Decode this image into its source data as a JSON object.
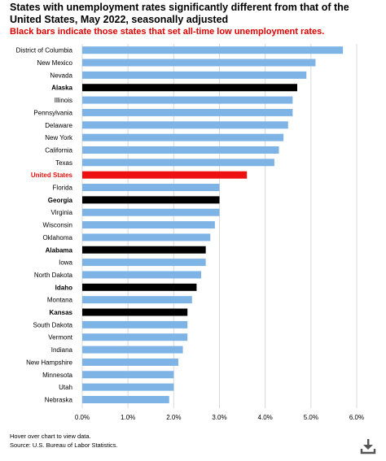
{
  "title": "States with unemployment rates significantly different from that of the United States, May 2022, seasonally adjusted",
  "subtitle": "Black bars indicate those states that set all-time low unemployment rates.",
  "footer": {
    "hover_note": "Hover over chart to view data.",
    "source": "Source: U.S. Bureau of Labor Statistics."
  },
  "download_icon": "download-icon",
  "colors": {
    "default_bar": "#7eb3e6",
    "record_low_bar": "#000000",
    "us_bar": "#ee1111",
    "subtitle": "#e00000",
    "gridline": "#d9d9d9"
  },
  "chart_data": {
    "type": "bar",
    "orientation": "horizontal",
    "categories": [
      "District of Columbia",
      "New Mexico",
      "Nevada",
      "Alaska",
      "Illinois",
      "Pennsylvania",
      "Delaware",
      "New York",
      "California",
      "Texas",
      "United States",
      "Florida",
      "Georgia",
      "Virginia",
      "Wisconsin",
      "Oklahoma",
      "Alabama",
      "Iowa",
      "North Dakota",
      "Idaho",
      "Montana",
      "Kansas",
      "South Dakota",
      "Vermont",
      "Indiana",
      "New Hampshire",
      "Minnesota",
      "Utah",
      "Nebraska"
    ],
    "values": [
      5.7,
      5.1,
      4.9,
      4.7,
      4.6,
      4.6,
      4.5,
      4.4,
      4.3,
      4.2,
      3.6,
      3.0,
      3.0,
      3.0,
      2.9,
      2.8,
      2.7,
      2.7,
      2.6,
      2.5,
      2.4,
      2.3,
      2.3,
      2.3,
      2.2,
      2.1,
      2.0,
      2.0,
      1.9
    ],
    "bar_kind": [
      "default",
      "default",
      "default",
      "record_low",
      "default",
      "default",
      "default",
      "default",
      "default",
      "default",
      "us",
      "default",
      "record_low",
      "default",
      "default",
      "default",
      "record_low",
      "default",
      "default",
      "record_low",
      "default",
      "record_low",
      "default",
      "default",
      "default",
      "default",
      "default",
      "default",
      "default"
    ],
    "xlim": [
      0,
      6
    ],
    "x_ticks": [
      "0.0%",
      "1.0%",
      "2.0%",
      "3.0%",
      "4.0%",
      "5.0%",
      "6.0%"
    ],
    "grid": "vertical",
    "legend": "none"
  }
}
